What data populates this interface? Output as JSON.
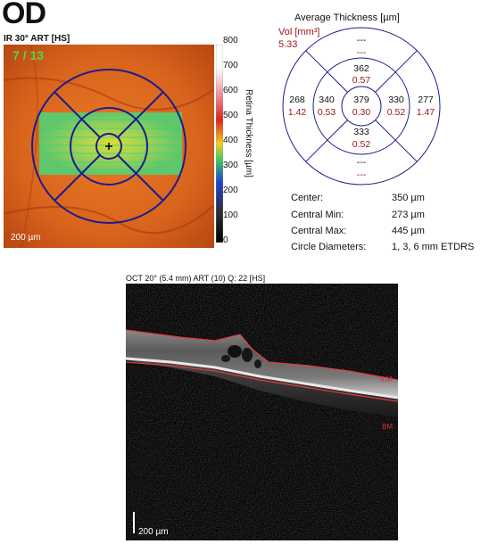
{
  "eye": "OD",
  "ir": {
    "title": "IR 30° ART [HS]",
    "slice": "7 / 13",
    "scale": "200 µm"
  },
  "colorbar": {
    "ticks": [
      "800",
      "700",
      "600",
      "500",
      "400",
      "300",
      "200",
      "100",
      "0"
    ],
    "label": "Retina Thickness [µm]"
  },
  "thickness_map": {
    "title": "Average Thickness [µm]",
    "vol_label": "Vol [mm³]",
    "vol_value": "5.33",
    "center": {
      "thickness": "379",
      "volume": "0.30"
    },
    "inner": {
      "superior": {
        "thickness": "362",
        "volume": "0.57"
      },
      "temporal": {
        "thickness": "340",
        "volume": "0.53"
      },
      "nasal": {
        "thickness": "330",
        "volume": "0.52"
      },
      "inferior": {
        "thickness": "333",
        "volume": "0.52"
      }
    },
    "outer": {
      "superior": {
        "thickness": "---",
        "volume": "---"
      },
      "temporal": {
        "thickness": "268",
        "volume": "1.42"
      },
      "nasal": {
        "thickness": "277",
        "volume": "1.47"
      },
      "inferior": {
        "thickness": "---",
        "volume": "---"
      }
    }
  },
  "stats": [
    {
      "label": "Center:",
      "value": "350 µm"
    },
    {
      "label": "Central Min:",
      "value": "273 µm"
    },
    {
      "label": "Central Max:",
      "value": "445 µm"
    },
    {
      "label": "Circle Diameters:",
      "value": "1, 3, 6 mm ETDRS"
    }
  ],
  "oct": {
    "title": "OCT 20° (5.4 mm) ART (10) Q: 22 [HS]",
    "scale": "200 µm",
    "ilm_label": "ILM",
    "bm_label": "BM"
  },
  "colors": {
    "volume": "#a0161c",
    "grid": "#1c1c8c",
    "segmentation": "#e23b3b"
  }
}
